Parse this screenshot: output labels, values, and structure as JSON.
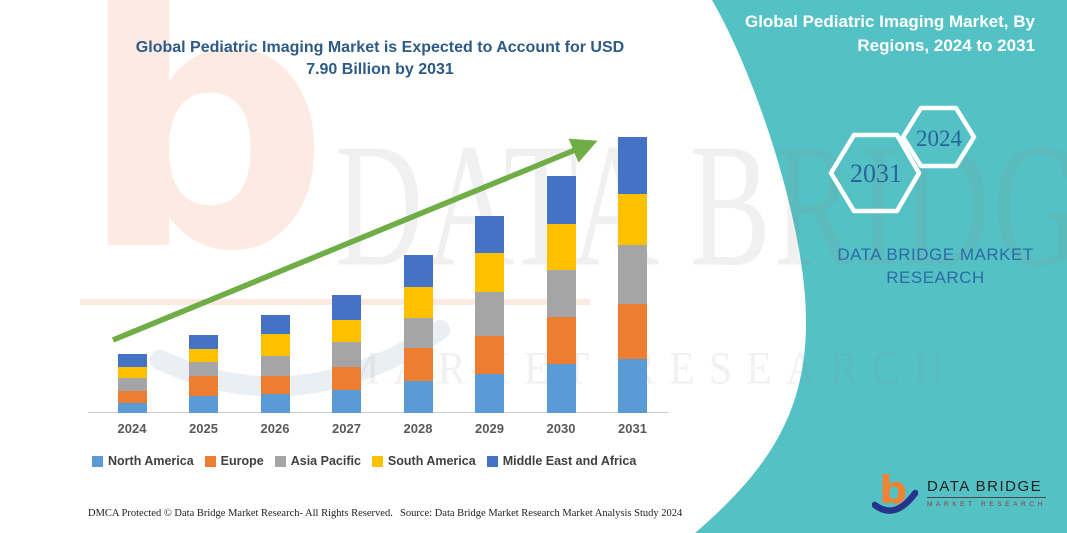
{
  "canvas": {
    "background": "#FFFFFF",
    "accent_teal": "#54C1C4"
  },
  "header": {
    "chart_title_line1": "Global Pediatric Imaging Market is Expected to Account for USD",
    "chart_title_line2": "7.90 Billion by 2031",
    "panel_title_line1": "Global Pediatric Imaging Market, By",
    "panel_title_line2": "Regions, 2024 to 2031"
  },
  "right_panel": {
    "hexagon_years": [
      {
        "label": "2031"
      },
      {
        "label": "2024"
      }
    ],
    "brand_line1": "DATA BRIDGE MARKET",
    "brand_line2": "RESEARCH",
    "text_color": "#2C6BA8"
  },
  "watermark": {
    "letter": "b",
    "row1": "DATA BRIDGE",
    "row2": "MARKET RESEARCH"
  },
  "chart_data": {
    "type": "bar",
    "stacked": true,
    "title": "Global Pediatric Imaging Market is Expected to Account for USD 7.90 Billion by 2031",
    "unit": "USD Billion",
    "categories": [
      "2024",
      "2025",
      "2026",
      "2027",
      "2028",
      "2029",
      "2030",
      "2031"
    ],
    "series": [
      {
        "name": "North America",
        "color": "#5B9BD5",
        "values": [
          0.3,
          0.48,
          0.55,
          0.65,
          0.91,
          1.12,
          1.4,
          1.55
        ]
      },
      {
        "name": "Europe",
        "color": "#ED7D31",
        "values": [
          0.33,
          0.59,
          0.52,
          0.67,
          0.95,
          1.08,
          1.36,
          1.57
        ]
      },
      {
        "name": "Asia Pacific",
        "color": "#A5A5A5",
        "values": [
          0.36,
          0.38,
          0.57,
          0.71,
          0.86,
          1.26,
          1.32,
          1.68
        ]
      },
      {
        "name": "South America",
        "color": "#FFC000",
        "values": [
          0.33,
          0.39,
          0.62,
          0.64,
          0.88,
          1.11,
          1.34,
          1.48
        ]
      },
      {
        "name": "Middle East and Africa",
        "color": "#4472C4",
        "values": [
          0.38,
          0.4,
          0.56,
          0.71,
          0.93,
          1.08,
          1.36,
          1.62
        ]
      }
    ],
    "totals": [
      1.7,
      2.24,
      2.82,
      3.38,
      4.53,
      5.65,
      6.78,
      7.9
    ],
    "trend_arrow": {
      "present": true,
      "color": "#6FAE46",
      "direction": "up-right"
    },
    "legend_position": "bottom",
    "y_axis_visible": false,
    "xlabel": "",
    "ylabel": ""
  },
  "footer": {
    "dmca_text": "DMCA Protected © Data Bridge Market Research-  All Rights Reserved.",
    "source_text": "Source: Data Bridge Market Research  Market Analysis Study 2024",
    "logo": {
      "brand": "DATA BRIDGE",
      "tagline": "MARKET RESEARCH"
    }
  }
}
